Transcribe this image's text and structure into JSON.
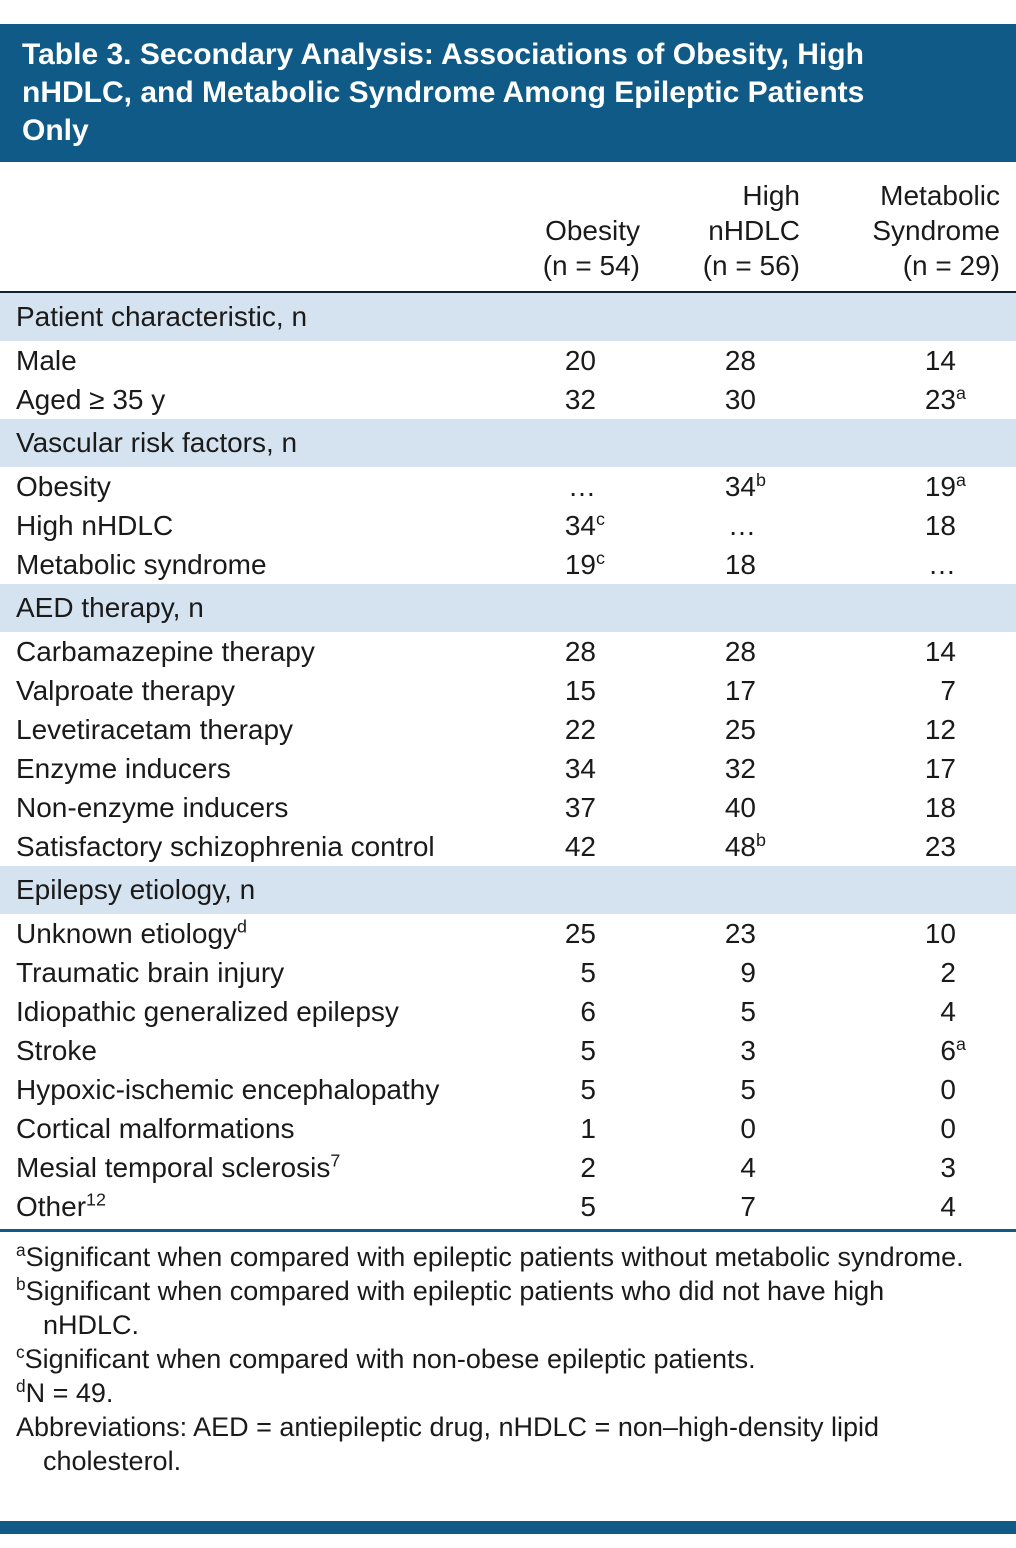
{
  "colors": {
    "banner_blue": "#0f5a86",
    "band_blue": "#d5e3f0",
    "text": "#1a1a1a",
    "rule_dark": "#10222e"
  },
  "table": {
    "title_lines": [
      "Table 3. Secondary Analysis: Associations of Obesity, High",
      "nHDLC, and Metabolic Syndrome Among Epileptic Patients",
      "Only"
    ],
    "columns": [
      {
        "lines": [
          "Obesity"
        ],
        "n": "(n = 54)"
      },
      {
        "lines": [
          "High",
          "nHDLC"
        ],
        "n": "(n = 56)"
      },
      {
        "lines": [
          "Metabolic",
          "Syndrome"
        ],
        "n": "(n = 29)"
      }
    ],
    "sections": [
      {
        "header": "Patient characteristic, n",
        "rows": [
          {
            "label": "Male",
            "label_sup": "",
            "values": [
              {
                "v": "20",
                "sup": ""
              },
              {
                "v": "28",
                "sup": ""
              },
              {
                "v": "14",
                "sup": ""
              }
            ]
          },
          {
            "label": "Aged ≥ 35 y",
            "label_sup": "",
            "values": [
              {
                "v": "32",
                "sup": ""
              },
              {
                "v": "30",
                "sup": ""
              },
              {
                "v": "23",
                "sup": "a"
              }
            ]
          }
        ]
      },
      {
        "header": "Vascular risk factors, n",
        "rows": [
          {
            "label": "Obesity",
            "label_sup": "",
            "values": [
              {
                "v": "…",
                "sup": ""
              },
              {
                "v": "34",
                "sup": "b"
              },
              {
                "v": "19",
                "sup": "a"
              }
            ]
          },
          {
            "label": "High nHDLC",
            "label_sup": "",
            "values": [
              {
                "v": "34",
                "sup": "c"
              },
              {
                "v": "…",
                "sup": ""
              },
              {
                "v": "18",
                "sup": ""
              }
            ]
          },
          {
            "label": "Metabolic syndrome",
            "label_sup": "",
            "values": [
              {
                "v": "19",
                "sup": "c"
              },
              {
                "v": "18",
                "sup": ""
              },
              {
                "v": "…",
                "sup": ""
              }
            ]
          }
        ]
      },
      {
        "header": "AED therapy, n",
        "rows": [
          {
            "label": "Carbamazepine therapy",
            "label_sup": "",
            "values": [
              {
                "v": "28",
                "sup": ""
              },
              {
                "v": "28",
                "sup": ""
              },
              {
                "v": "14",
                "sup": ""
              }
            ]
          },
          {
            "label": "Valproate therapy",
            "label_sup": "",
            "values": [
              {
                "v": "15",
                "sup": ""
              },
              {
                "v": "17",
                "sup": ""
              },
              {
                "v": "7",
                "sup": ""
              }
            ]
          },
          {
            "label": "Levetiracetam therapy",
            "label_sup": "",
            "values": [
              {
                "v": "22",
                "sup": ""
              },
              {
                "v": "25",
                "sup": ""
              },
              {
                "v": "12",
                "sup": ""
              }
            ]
          },
          {
            "label": "Enzyme inducers",
            "label_sup": "",
            "values": [
              {
                "v": "34",
                "sup": ""
              },
              {
                "v": "32",
                "sup": ""
              },
              {
                "v": "17",
                "sup": ""
              }
            ]
          },
          {
            "label": "Non-enzyme inducers",
            "label_sup": "",
            "values": [
              {
                "v": "37",
                "sup": ""
              },
              {
                "v": "40",
                "sup": ""
              },
              {
                "v": "18",
                "sup": ""
              }
            ]
          },
          {
            "label": "Satisfactory schizophrenia control",
            "label_sup": "",
            "values": [
              {
                "v": "42",
                "sup": ""
              },
              {
                "v": "48",
                "sup": "b"
              },
              {
                "v": "23",
                "sup": ""
              }
            ]
          }
        ]
      },
      {
        "header": "Epilepsy etiology, n",
        "rows": [
          {
            "label": "Unknown etiology",
            "label_sup": "d",
            "values": [
              {
                "v": "25",
                "sup": ""
              },
              {
                "v": "23",
                "sup": ""
              },
              {
                "v": "10",
                "sup": ""
              }
            ]
          },
          {
            "label": "Traumatic brain injury",
            "label_sup": "",
            "values": [
              {
                "v": "5",
                "sup": ""
              },
              {
                "v": "9",
                "sup": ""
              },
              {
                "v": "2",
                "sup": ""
              }
            ]
          },
          {
            "label": "Idiopathic generalized epilepsy",
            "label_sup": "",
            "values": [
              {
                "v": "6",
                "sup": ""
              },
              {
                "v": "5",
                "sup": ""
              },
              {
                "v": "4",
                "sup": ""
              }
            ]
          },
          {
            "label": "Stroke",
            "label_sup": "",
            "values": [
              {
                "v": "5",
                "sup": ""
              },
              {
                "v": "3",
                "sup": ""
              },
              {
                "v": "6",
                "sup": "a"
              }
            ]
          },
          {
            "label": "Hypoxic-ischemic encephalopathy",
            "label_sup": "",
            "values": [
              {
                "v": "5",
                "sup": ""
              },
              {
                "v": "5",
                "sup": ""
              },
              {
                "v": "0",
                "sup": ""
              }
            ]
          },
          {
            "label": "Cortical malformations",
            "label_sup": "",
            "values": [
              {
                "v": "1",
                "sup": ""
              },
              {
                "v": "0",
                "sup": ""
              },
              {
                "v": "0",
                "sup": ""
              }
            ]
          },
          {
            "label": "Mesial temporal sclerosis",
            "label_sup": "7",
            "values": [
              {
                "v": "2",
                "sup": ""
              },
              {
                "v": "4",
                "sup": ""
              },
              {
                "v": "3",
                "sup": ""
              }
            ]
          },
          {
            "label": "Other",
            "label_sup": "12",
            "values": [
              {
                "v": "5",
                "sup": ""
              },
              {
                "v": "7",
                "sup": ""
              },
              {
                "v": "4",
                "sup": ""
              }
            ]
          }
        ]
      }
    ],
    "footnotes": [
      {
        "sup": "a",
        "text": "Significant when compared with epileptic patients without metabolic syndrome."
      },
      {
        "sup": "b",
        "text": "Significant when compared with epileptic patients who did not have high nHDLC."
      },
      {
        "sup": "c",
        "text": "Significant when compared with non-obese epileptic patients."
      },
      {
        "sup": "d",
        "text": "N = 49."
      },
      {
        "sup": "",
        "text": "Abbreviations: AED = antiepileptic drug, nHDLC = non–high-density lipid cholesterol."
      }
    ]
  }
}
